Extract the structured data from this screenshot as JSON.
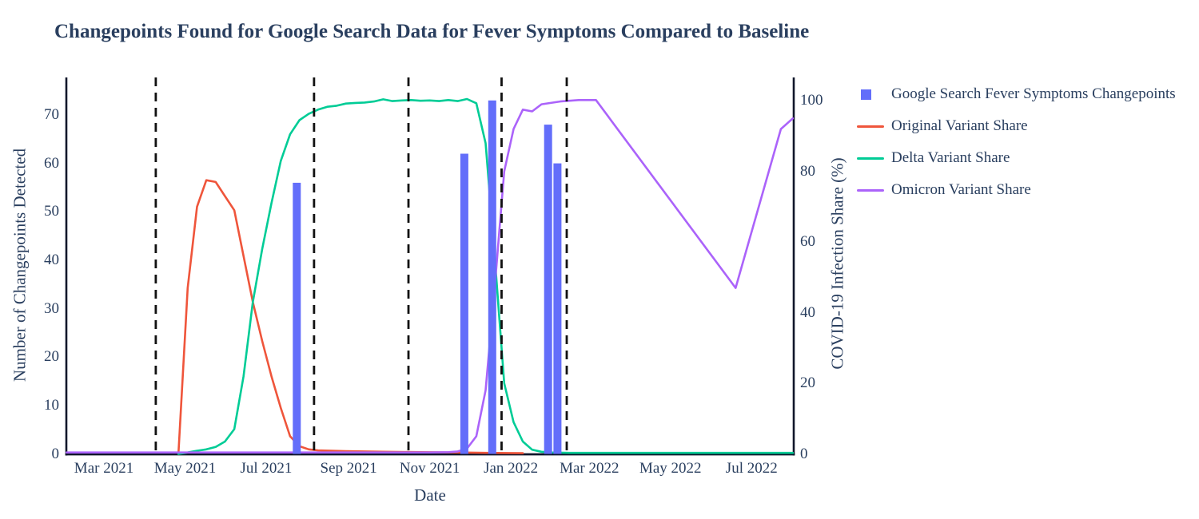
{
  "title": "Changepoints Found for Google Search Data for Fever Symptoms Compared to Baseline",
  "style": {
    "background": "#ffffff",
    "text_color": "#2a3f5f",
    "axis_line_color": "#10162a",
    "dashed_line_color": "#111111",
    "bar_color": "#636EFA",
    "original_color": "#EF553B",
    "delta_color": "#00CC96",
    "omicron_color": "#AB63FA"
  },
  "legend": {
    "items": [
      {
        "label": "Google Search Fever Symptoms Changepoints",
        "marker": "square",
        "color": "#636EFA"
      },
      {
        "label": "Original Variant Share",
        "marker": "line",
        "color": "#EF553B"
      },
      {
        "label": "Delta Variant Share",
        "marker": "line",
        "color": "#00CC96"
      },
      {
        "label": "Omicron Variant Share",
        "marker": "line",
        "color": "#AB63FA"
      }
    ]
  },
  "axes": {
    "x": {
      "title": "Date",
      "ticks": [
        {
          "label": "Mar 2021",
          "date": "2021-03-01"
        },
        {
          "label": "May 2021",
          "date": "2021-05-01"
        },
        {
          "label": "Jul 2021",
          "date": "2021-07-01"
        },
        {
          "label": "Sep 2021",
          "date": "2021-09-01"
        },
        {
          "label": "Nov 2021",
          "date": "2021-11-01"
        },
        {
          "label": "Jan 2022",
          "date": "2022-01-01"
        },
        {
          "label": "Mar 2022",
          "date": "2022-03-01"
        },
        {
          "label": "May 2022",
          "date": "2022-05-01"
        },
        {
          "label": "Jul 2022",
          "date": "2022-07-01"
        }
      ]
    },
    "y_left": {
      "title": "Number of Changepoints Detected",
      "ticks": [
        0,
        10,
        20,
        30,
        40,
        50,
        60,
        70
      ],
      "range": [
        0,
        77.7
      ]
    },
    "y_right": {
      "title": "COVID-19 Infection Share (%)",
      "ticks": [
        0,
        20,
        40,
        60,
        80,
        100
      ],
      "range": [
        0,
        106.5
      ]
    }
  },
  "chart_data": {
    "type": "bar+line",
    "x_range": [
      "2021-02-01",
      "2022-08-01"
    ],
    "bars": {
      "name": "Google Search Fever Symptoms Changepoints",
      "color": "#636EFA",
      "axis": "left",
      "bar_width_days": 6,
      "points": [
        [
          "2021-07-24",
          56
        ],
        [
          "2021-11-27",
          62
        ],
        [
          "2021-12-18",
          73
        ],
        [
          "2022-01-29",
          68
        ],
        [
          "2022-02-05",
          60
        ]
      ]
    },
    "series": [
      {
        "name": "Original Variant Share",
        "color": "#EF553B",
        "axis": "right",
        "points": [
          [
            "2021-04-26",
            0
          ],
          [
            "2021-05-03",
            47
          ],
          [
            "2021-05-10",
            70
          ],
          [
            "2021-05-17",
            77.5
          ],
          [
            "2021-05-24",
            77
          ],
          [
            "2021-05-31",
            73
          ],
          [
            "2021-06-07",
            69
          ],
          [
            "2021-06-14",
            56
          ],
          [
            "2021-06-21",
            43
          ],
          [
            "2021-06-28",
            32
          ],
          [
            "2021-07-05",
            22
          ],
          [
            "2021-07-12",
            13
          ],
          [
            "2021-07-19",
            5
          ],
          [
            "2021-07-26",
            2.2
          ],
          [
            "2021-08-02",
            1.3
          ],
          [
            "2021-08-09",
            1.0
          ],
          [
            "2021-08-30",
            0.8
          ],
          [
            "2021-09-27",
            0.6
          ],
          [
            "2021-10-25",
            0.5
          ],
          [
            "2021-11-22",
            0.4
          ],
          [
            "2021-12-13",
            0.3
          ],
          [
            "2022-01-10",
            0.2
          ]
        ]
      },
      {
        "name": "Delta Variant Share",
        "color": "#00CC96",
        "axis": "right",
        "points": [
          [
            "2021-04-26",
            0
          ],
          [
            "2021-05-03",
            0.4
          ],
          [
            "2021-05-10",
            0.9
          ],
          [
            "2021-05-17",
            1.3
          ],
          [
            "2021-05-24",
            2
          ],
          [
            "2021-05-31",
            3.5
          ],
          [
            "2021-06-07",
            7
          ],
          [
            "2021-06-14",
            22
          ],
          [
            "2021-06-21",
            43
          ],
          [
            "2021-06-28",
            58
          ],
          [
            "2021-07-05",
            71
          ],
          [
            "2021-07-12",
            83
          ],
          [
            "2021-07-19",
            90.5
          ],
          [
            "2021-07-26",
            94.5
          ],
          [
            "2021-08-02",
            96.3
          ],
          [
            "2021-08-09",
            97.5
          ],
          [
            "2021-08-16",
            98.3
          ],
          [
            "2021-08-23",
            98.6
          ],
          [
            "2021-08-30",
            99.2
          ],
          [
            "2021-09-06",
            99.4
          ],
          [
            "2021-09-13",
            99.5
          ],
          [
            "2021-09-20",
            99.8
          ],
          [
            "2021-09-27",
            100.4
          ],
          [
            "2021-10-04",
            99.9
          ],
          [
            "2021-10-11",
            100.1
          ],
          [
            "2021-10-18",
            100.2
          ],
          [
            "2021-10-25",
            100.0
          ],
          [
            "2021-11-01",
            100.1
          ],
          [
            "2021-11-08",
            99.9
          ],
          [
            "2021-11-15",
            100.2
          ],
          [
            "2021-11-22",
            99.9
          ],
          [
            "2021-11-29",
            100.5
          ],
          [
            "2021-12-06",
            99.3
          ],
          [
            "2021-12-13",
            88
          ],
          [
            "2021-12-20",
            55
          ],
          [
            "2021-12-27",
            20
          ],
          [
            "2022-01-03",
            9
          ],
          [
            "2022-01-10",
            3.5
          ],
          [
            "2022-01-17",
            1.2
          ],
          [
            "2022-01-24",
            0.6
          ],
          [
            "2022-01-31",
            0.4
          ],
          [
            "2022-02-14",
            0.3
          ],
          [
            "2022-08-01",
            0.3
          ]
        ]
      },
      {
        "name": "Omicron Variant Share",
        "color": "#AB63FA",
        "axis": "right",
        "points": [
          [
            "2021-02-01",
            0.4
          ],
          [
            "2021-11-01",
            0.4
          ],
          [
            "2021-11-15",
            0.5
          ],
          [
            "2021-11-22",
            0.7
          ],
          [
            "2021-11-29",
            1.5
          ],
          [
            "2021-12-06",
            5
          ],
          [
            "2021-12-13",
            18
          ],
          [
            "2021-12-20",
            48
          ],
          [
            "2021-12-27",
            80
          ],
          [
            "2022-01-03",
            92
          ],
          [
            "2022-01-10",
            97.5
          ],
          [
            "2022-01-17",
            97
          ],
          [
            "2022-01-24",
            99
          ],
          [
            "2022-01-31",
            99.4
          ],
          [
            "2022-02-07",
            99.8
          ],
          [
            "2022-02-21",
            100.2
          ],
          [
            "2022-03-06",
            100.2
          ],
          [
            "2022-06-19",
            47
          ],
          [
            "2022-07-23",
            92
          ],
          [
            "2022-08-01",
            95
          ]
        ]
      }
    ],
    "dashed_vlines": {
      "color": "#111111",
      "dates": [
        "2021-04-09",
        "2021-08-06",
        "2021-10-16",
        "2021-12-25",
        "2022-02-12"
      ]
    }
  }
}
